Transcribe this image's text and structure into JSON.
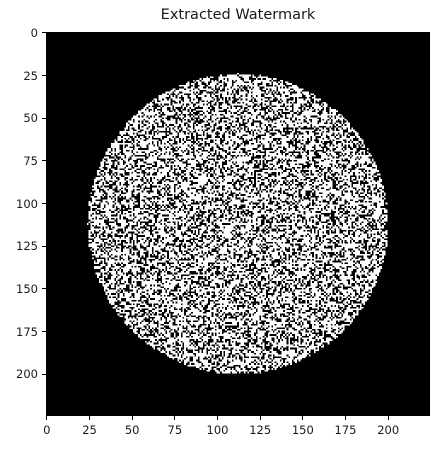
{
  "chart_data": {
    "type": "heatmap",
    "title": "Extracted Watermark",
    "xlabel": "",
    "ylabel": "",
    "image_size": [
      225,
      225
    ],
    "colormap": "gray",
    "values_binary": [
      0,
      1
    ],
    "xlim": [
      -0.5,
      224.5
    ],
    "ylim": [
      224.5,
      -0.5
    ],
    "x_ticks": [
      0,
      25,
      50,
      75,
      100,
      125,
      150,
      175,
      200
    ],
    "y_ticks": [
      0,
      25,
      50,
      75,
      100,
      125,
      150,
      175,
      200
    ],
    "x_tick_labels": [
      "0",
      "25",
      "50",
      "75",
      "100",
      "125",
      "150",
      "175",
      "200"
    ],
    "y_tick_labels": [
      "0",
      "25",
      "50",
      "75",
      "100",
      "125",
      "150",
      "175",
      "200"
    ],
    "disc_center": [
      112,
      112
    ],
    "disc_radius": 88,
    "disc_fill_density": 0.62,
    "background_value": 0,
    "grid": false,
    "legend": "none"
  }
}
